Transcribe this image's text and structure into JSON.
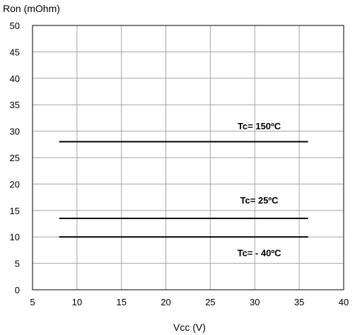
{
  "chart_data": {
    "type": "line",
    "title": "",
    "xlabel": "Vcc (V)",
    "ylabel": "Ron (mOhm)",
    "xlim": [
      5,
      40
    ],
    "ylim": [
      0,
      50
    ],
    "x_ticks": [
      5,
      10,
      15,
      20,
      25,
      30,
      35,
      40
    ],
    "y_ticks": [
      0,
      5,
      10,
      15,
      20,
      25,
      30,
      35,
      40,
      45,
      50
    ],
    "grid": true,
    "legend": "none",
    "line_color": "#000000",
    "grid_color": "#a6a6a6",
    "series": [
      {
        "name": "Tc= 150ºC",
        "x": [
          8,
          36
        ],
        "y": [
          28,
          28
        ]
      },
      {
        "name": "Tc= 25ºC",
        "x": [
          8,
          36
        ],
        "y": [
          13.5,
          13.5
        ]
      },
      {
        "name": "Tc= - 40ºC",
        "x": [
          8,
          36
        ],
        "y": [
          10,
          10
        ]
      }
    ],
    "annotations": [
      {
        "text": "Tc= 150ºC",
        "x": 30.5,
        "y": 31,
        "series": 0
      },
      {
        "text": "Tc= 25ºC",
        "x": 30.5,
        "y": 17,
        "series": 1
      },
      {
        "text": "Tc= - 40ºC",
        "x": 30.5,
        "y": 7,
        "series": 2
      }
    ]
  }
}
